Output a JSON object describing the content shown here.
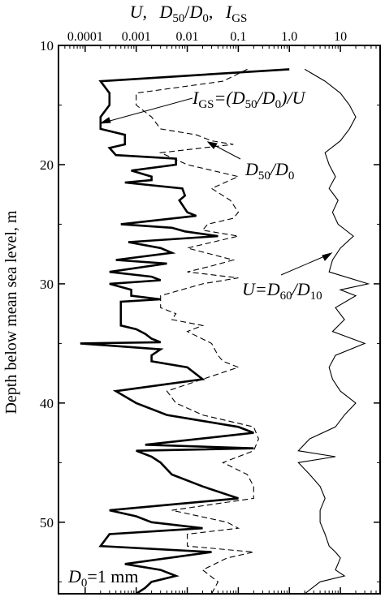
{
  "chart_data": {
    "type": "line",
    "orientation": "depth-profile",
    "title_parts": {
      "u": "U,",
      "d": "D",
      "d_sub": "50",
      "slash": "/",
      "d0": "D",
      "d0_sub": "0",
      "comma": ",",
      "igs": "I",
      "igs_sub": "GS"
    },
    "xaxis": {
      "scale": "log",
      "position": "top",
      "range": [
        3e-05,
        60
      ],
      "ticks": [
        {
          "value": 0.0001,
          "label": "0.0001"
        },
        {
          "value": 0.001,
          "label": "0.001"
        },
        {
          "value": 0.01,
          "label": "0.01"
        },
        {
          "value": 0.1,
          "label": "0.1"
        },
        {
          "value": 1,
          "label": "1.0"
        },
        {
          "value": 10,
          "label": "10"
        }
      ]
    },
    "yaxis": {
      "label": "Depth below mean sea level,  m",
      "range": [
        10,
        56
      ],
      "inverted": true,
      "ticks": [
        {
          "value": 10,
          "label": "10"
        },
        {
          "value": 20,
          "label": "20"
        },
        {
          "value": 30,
          "label": "30"
        },
        {
          "value": 40,
          "label": "40"
        },
        {
          "value": 50,
          "label": "50"
        }
      ]
    },
    "annotations": {
      "igs": {
        "main": "I",
        "sub": "GS",
        "rest1": "=(D",
        "sub2": "50",
        "rest2": "/D",
        "sub3": "0",
        "rest3": ")/U"
      },
      "d50d0": {
        "main": "D",
        "sub": "50",
        "rest": "/D",
        "sub2": "0"
      },
      "u": {
        "main": "U=D",
        "sub": "60",
        "rest": "/D",
        "sub2": "10"
      },
      "d0": {
        "main": "D",
        "sub": "0",
        "rest": "=1 mm"
      }
    },
    "series": [
      {
        "key": "igs",
        "style": "bold",
        "points": [
          [
            1.0,
            12.0
          ],
          [
            0.0002,
            13.0
          ],
          [
            0.0003,
            14.0
          ],
          [
            0.0003,
            15.0
          ],
          [
            0.0002,
            16.0
          ],
          [
            0.0002,
            17.0
          ],
          [
            0.0006,
            17.5
          ],
          [
            0.0006,
            18.3
          ],
          [
            0.0003,
            18.6
          ],
          [
            0.0004,
            19.2
          ],
          [
            0.006,
            19.5
          ],
          [
            0.006,
            20.0
          ],
          [
            0.0008,
            20.5
          ],
          [
            0.002,
            21.0
          ],
          [
            0.002,
            21.3
          ],
          [
            0.0006,
            21.5
          ],
          [
            0.008,
            22.0
          ],
          [
            0.009,
            22.6
          ],
          [
            0.007,
            23.0
          ],
          [
            0.01,
            24.0
          ],
          [
            0.015,
            24.3
          ],
          [
            0.0005,
            25.0
          ],
          [
            0.005,
            25.3
          ],
          [
            0.009,
            25.6
          ],
          [
            0.04,
            26.0
          ],
          [
            0.0007,
            26.5
          ],
          [
            0.003,
            27.0
          ],
          [
            0.005,
            27.4
          ],
          [
            0.0004,
            28.0
          ],
          [
            0.004,
            28.3
          ],
          [
            0.0003,
            29.0
          ],
          [
            0.002,
            29.4
          ],
          [
            0.003,
            29.7
          ],
          [
            0.0003,
            30.0
          ],
          [
            0.0008,
            30.5
          ],
          [
            0.0008,
            31.0
          ],
          [
            0.003,
            31.3
          ],
          [
            0.0005,
            31.5
          ],
          [
            0.0005,
            32.5
          ],
          [
            0.0005,
            33.5
          ],
          [
            0.001,
            33.8
          ],
          [
            0.0015,
            34.2
          ],
          [
            0.002,
            34.6
          ],
          [
            0.003,
            34.9
          ],
          [
            8e-05,
            35.0
          ],
          [
            0.003,
            35.5
          ],
          [
            0.002,
            36.0
          ],
          [
            0.002,
            36.5
          ],
          [
            0.01,
            37.0
          ],
          [
            0.02,
            38.0
          ],
          [
            0.0004,
            39.0
          ],
          [
            0.001,
            40.0
          ],
          [
            0.004,
            41.0
          ],
          [
            0.1,
            42.0
          ],
          [
            0.2,
            42.5
          ],
          [
            0.0015,
            43.5
          ],
          [
            0.2,
            43.8
          ],
          [
            0.001,
            44.0
          ],
          [
            0.002,
            44.5
          ],
          [
            0.003,
            45.0
          ],
          [
            0.005,
            46.0
          ],
          [
            0.02,
            47.0
          ],
          [
            0.1,
            48.0
          ],
          [
            0.0003,
            49.0
          ],
          [
            0.001,
            49.5
          ],
          [
            0.002,
            50.0
          ],
          [
            0.02,
            50.5
          ],
          [
            0.0003,
            51.0
          ],
          [
            0.0002,
            52.0
          ],
          [
            0.03,
            52.5
          ],
          [
            0.0006,
            53.5
          ],
          [
            0.003,
            54.0
          ],
          [
            0.006,
            54.5
          ],
          [
            0.002,
            55.0
          ],
          [
            0.0015,
            55.5
          ],
          [
            0.001,
            56.0
          ]
        ]
      },
      {
        "key": "d50d0",
        "style": "dashed",
        "points": [
          [
            0.15,
            12.0
          ],
          [
            0.05,
            13.0
          ],
          [
            0.001,
            14.0
          ],
          [
            0.001,
            15.0
          ],
          [
            0.002,
            16.0
          ],
          [
            0.003,
            17.0
          ],
          [
            0.015,
            17.5
          ],
          [
            0.03,
            18.0
          ],
          [
            0.08,
            18.3
          ],
          [
            0.003,
            19.0
          ],
          [
            0.01,
            20.0
          ],
          [
            0.1,
            21.0
          ],
          [
            0.03,
            22.0
          ],
          [
            0.07,
            23.0
          ],
          [
            0.1,
            24.0
          ],
          [
            0.08,
            24.5
          ],
          [
            0.025,
            25.0
          ],
          [
            0.02,
            25.5
          ],
          [
            0.1,
            26.0
          ],
          [
            0.01,
            27.0
          ],
          [
            0.08,
            28.0
          ],
          [
            0.03,
            28.5
          ],
          [
            0.01,
            29.0
          ],
          [
            0.1,
            29.5
          ],
          [
            0.02,
            30.0
          ],
          [
            0.003,
            31.0
          ],
          [
            0.003,
            32.0
          ],
          [
            0.006,
            32.5
          ],
          [
            0.005,
            33.0
          ],
          [
            0.02,
            33.5
          ],
          [
            0.01,
            34.0
          ],
          [
            0.03,
            35.0
          ],
          [
            0.04,
            36.0
          ],
          [
            0.05,
            36.5
          ],
          [
            0.1,
            37.0
          ],
          [
            0.02,
            38.0
          ],
          [
            0.004,
            39.0
          ],
          [
            0.006,
            40.0
          ],
          [
            0.02,
            41.0
          ],
          [
            0.2,
            42.0
          ],
          [
            0.25,
            43.0
          ],
          [
            0.2,
            44.0
          ],
          [
            0.1,
            44.5
          ],
          [
            0.05,
            45.0
          ],
          [
            0.15,
            46.0
          ],
          [
            0.2,
            47.0
          ],
          [
            0.2,
            48.0
          ],
          [
            0.005,
            49.0
          ],
          [
            0.06,
            50.0
          ],
          [
            0.1,
            50.5
          ],
          [
            0.01,
            51.0
          ],
          [
            0.01,
            52.0
          ],
          [
            0.2,
            52.5
          ],
          [
            0.06,
            53.0
          ],
          [
            0.02,
            54.0
          ],
          [
            0.04,
            55.0
          ],
          [
            0.03,
            56.0
          ]
        ]
      },
      {
        "key": "u",
        "style": "thin",
        "points": [
          [
            2.0,
            12.0
          ],
          [
            5.0,
            13.0
          ],
          [
            10.0,
            14.0
          ],
          [
            15.0,
            15.0
          ],
          [
            20.0,
            16.0
          ],
          [
            15.0,
            17.0
          ],
          [
            10.0,
            18.0
          ],
          [
            5.0,
            19.0
          ],
          [
            6.0,
            20.0
          ],
          [
            8.0,
            21.0
          ],
          [
            6.0,
            22.0
          ],
          [
            9.0,
            23.0
          ],
          [
            7.0,
            24.0
          ],
          [
            9.0,
            25.0
          ],
          [
            18.0,
            26.0
          ],
          [
            10.0,
            27.0
          ],
          [
            7.0,
            28.0
          ],
          [
            6.0,
            29.0
          ],
          [
            35.0,
            30.0
          ],
          [
            10.0,
            30.5
          ],
          [
            20.0,
            31.0
          ],
          [
            8.0,
            32.0
          ],
          [
            12.0,
            33.0
          ],
          [
            7.0,
            34.0
          ],
          [
            30.0,
            35.0
          ],
          [
            8.0,
            36.0
          ],
          [
            6.0,
            37.0
          ],
          [
            7.0,
            38.0
          ],
          [
            10.0,
            39.0
          ],
          [
            20.0,
            40.0
          ],
          [
            12.0,
            41.0
          ],
          [
            8.0,
            42.0
          ],
          [
            2.5,
            43.0
          ],
          [
            1.5,
            44.0
          ],
          [
            8.0,
            44.5
          ],
          [
            1.5,
            45.0
          ],
          [
            2.5,
            46.0
          ],
          [
            4.0,
            47.0
          ],
          [
            5.0,
            48.0
          ],
          [
            4.0,
            49.0
          ],
          [
            4.0,
            50.0
          ],
          [
            5.0,
            51.0
          ],
          [
            6.0,
            52.0
          ],
          [
            8.0,
            52.5
          ],
          [
            10.0,
            53.0
          ],
          [
            8.0,
            54.0
          ],
          [
            12.0,
            54.5
          ],
          [
            4.0,
            55.0
          ],
          [
            2.0,
            56.0
          ]
        ]
      }
    ]
  }
}
